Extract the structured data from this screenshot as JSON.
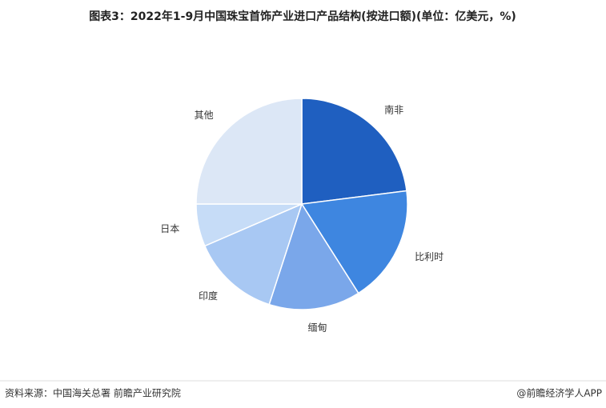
{
  "chart_data": {
    "type": "pie",
    "title": "图表3：2022年1-9月中国珠宝首饰产业进口产品结构(按进口额)(单位：亿美元，%)",
    "categories": [
      "南非",
      "比利时",
      "缅甸",
      "印度",
      "日本",
      "其他"
    ],
    "values": [
      23,
      18,
      14,
      13.5,
      6.5,
      25
    ],
    "colors": [
      "#1f5fc0",
      "#3e86e0",
      "#7aa7ea",
      "#a8c8f3",
      "#c6dcf7",
      "#dce7f6"
    ],
    "source": "资料来源：中国海关总署 前瞻产业研究院",
    "credit": "@前瞻经济学人APP"
  }
}
